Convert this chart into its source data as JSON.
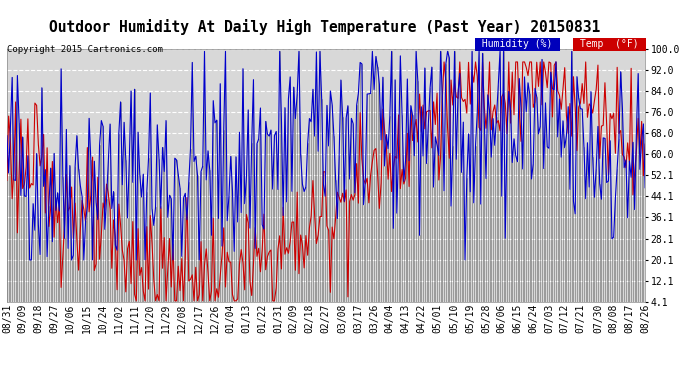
{
  "title": "Outdoor Humidity At Daily High Temperature (Past Year) 20150831",
  "copyright": "Copyright 2015 Cartronics.com",
  "legend_humidity": "Humidity (%)",
  "legend_temp": "Temp  (°F)",
  "legend_humidity_bg": "#0000bb",
  "legend_temp_bg": "#cc0000",
  "yticks": [
    4.1,
    12.1,
    20.1,
    28.1,
    36.1,
    44.1,
    52.1,
    60.0,
    68.0,
    76.0,
    84.0,
    92.0,
    100.0
  ],
  "ylim": [
    4.1,
    100.0
  ],
  "bg_color": "#ffffff",
  "plot_bg_color": "#d8d8d8",
  "grid_color": "#ffffff",
  "humidity_color": "#0000cc",
  "temp_color": "#cc0000",
  "black_color": "#000000",
  "title_fontsize": 10.5,
  "tick_fontsize": 7,
  "copyright_fontsize": 6.5,
  "x_tick_labels": [
    "08/31",
    "09/09",
    "09/18",
    "09/27",
    "10/06",
    "10/15",
    "10/24",
    "11/02",
    "11/11",
    "11/20",
    "11/29",
    "12/08",
    "12/17",
    "12/26",
    "01/04",
    "01/13",
    "01/22",
    "01/31",
    "02/09",
    "02/18",
    "02/27",
    "03/08",
    "03/17",
    "03/26",
    "04/04",
    "04/13",
    "04/22",
    "05/01",
    "05/10",
    "05/19",
    "05/28",
    "06/06",
    "06/15",
    "06/24",
    "07/03",
    "07/12",
    "07/21",
    "07/30",
    "08/08",
    "08/17",
    "08/26"
  ]
}
